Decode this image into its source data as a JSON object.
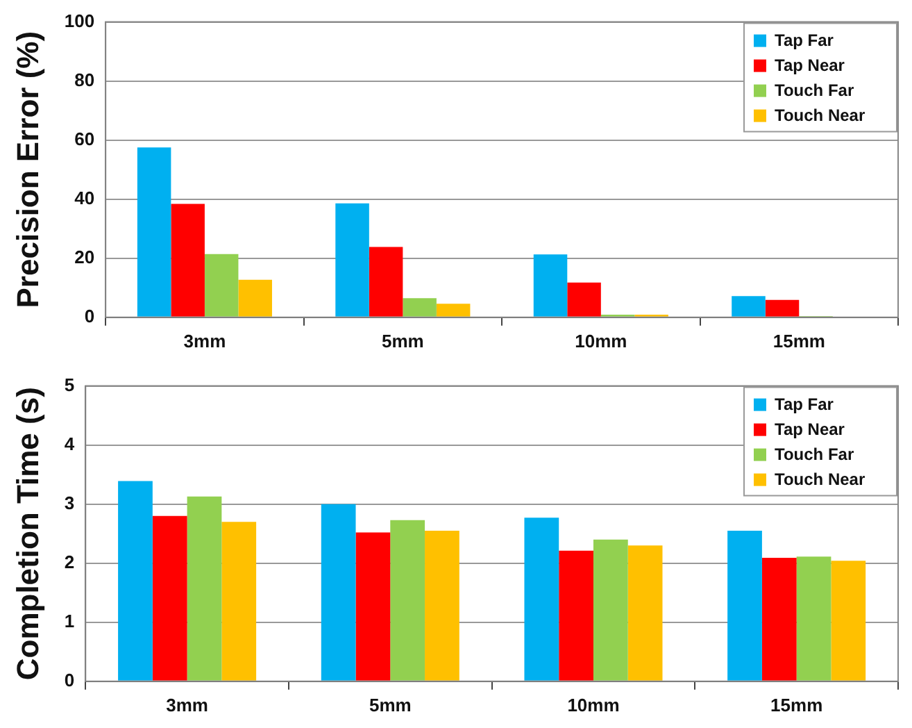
{
  "chart_data": [
    {
      "type": "bar",
      "ylabel": "Precision Error (%)",
      "categories": [
        "3mm",
        "5mm",
        "10mm",
        "15mm"
      ],
      "series": [
        {
          "name": "Tap Far",
          "color": "#00b0f0",
          "values": [
            57.5,
            38.6,
            21.3,
            7.2
          ]
        },
        {
          "name": "Tap Near",
          "color": "#ff0000",
          "values": [
            38.4,
            23.8,
            11.8,
            5.9
          ]
        },
        {
          "name": "Touch Far",
          "color": "#92d050",
          "values": [
            21.4,
            6.5,
            0.9,
            0.4
          ]
        },
        {
          "name": "Touch Near",
          "color": "#ffc000",
          "values": [
            12.7,
            4.6,
            0.9,
            0
          ]
        }
      ],
      "ylim": [
        0,
        100
      ],
      "yticks": [
        0,
        20,
        40,
        60,
        80,
        100
      ],
      "grid": "y",
      "legend": "top right"
    },
    {
      "type": "bar",
      "ylabel": "Completion Time (s)",
      "categories": [
        "3mm",
        "5mm",
        "10mm",
        "15mm"
      ],
      "series": [
        {
          "name": "Tap Far",
          "color": "#00b0f0",
          "values": [
            3.39,
            3.0,
            2.77,
            2.55
          ]
        },
        {
          "name": "Tap Near",
          "color": "#ff0000",
          "values": [
            2.8,
            2.52,
            2.21,
            2.09
          ]
        },
        {
          "name": "Touch Far",
          "color": "#92d050",
          "values": [
            3.13,
            2.73,
            2.4,
            2.11
          ]
        },
        {
          "name": "Touch Near",
          "color": "#ffc000",
          "values": [
            2.7,
            2.55,
            2.3,
            2.04
          ]
        }
      ],
      "ylim": [
        0,
        5
      ],
      "yticks": [
        0,
        1,
        2,
        3,
        4,
        5
      ],
      "grid": "y",
      "legend": "top right"
    }
  ]
}
